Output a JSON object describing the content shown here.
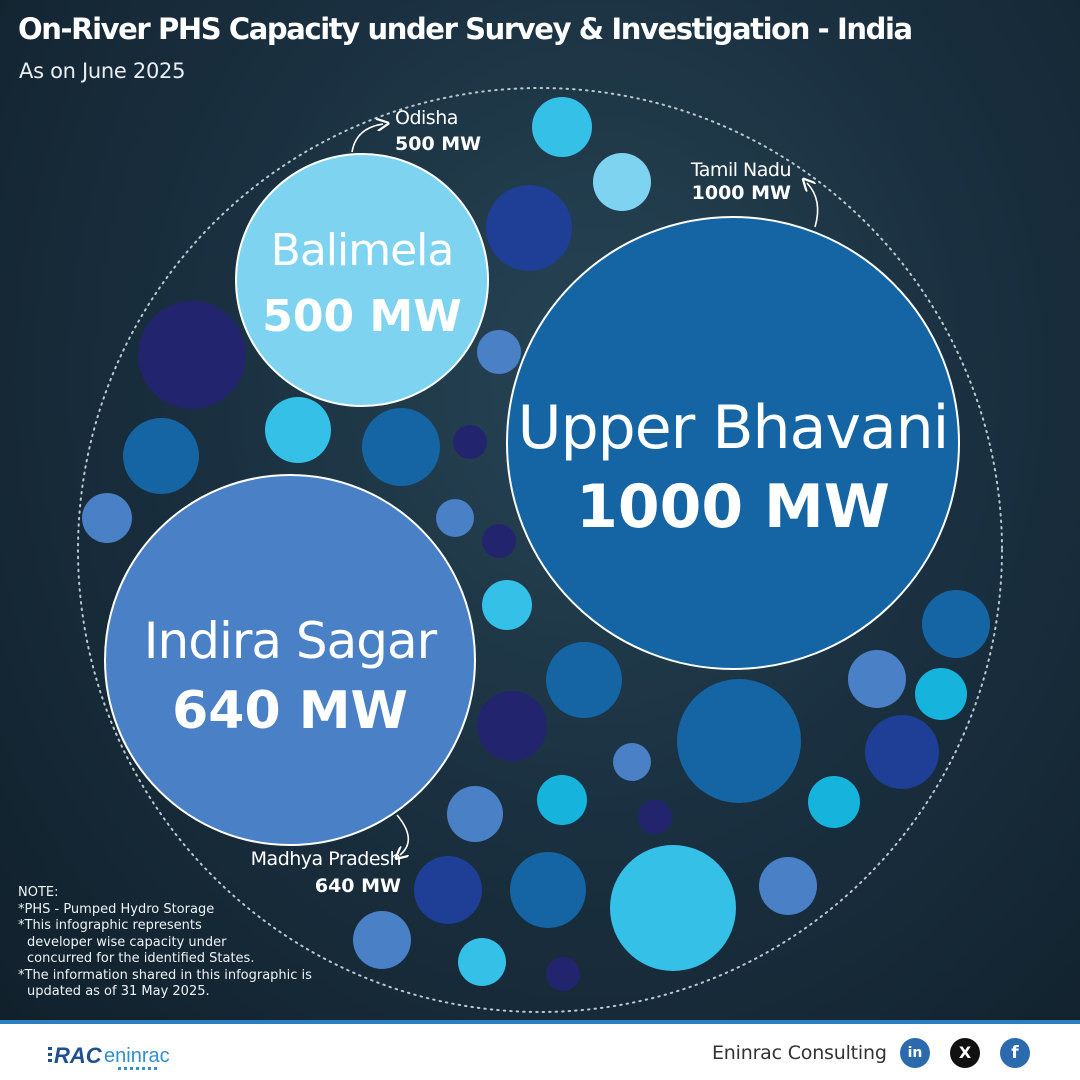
{
  "header": {
    "title": "On-River PHS Capacity under Survey & Investigation - India",
    "subtitle": "As on June 2025"
  },
  "chart_data": {
    "type": "bubble",
    "unit": "MW",
    "projects": [
      {
        "name": "Upper Bhavani",
        "state": "Tamil Nadu",
        "capacity_mw": 1000,
        "value_label": "1000 MW",
        "color": "#1565a5"
      },
      {
        "name": "Indira Sagar",
        "state": "Madhya Pradesh",
        "capacity_mw": 640,
        "value_label": "640 MW",
        "color": "#4a80c6"
      },
      {
        "name": "Balimela",
        "state": "Odisha",
        "capacity_mw": 500,
        "value_label": "500 MW",
        "color": "#7dd3f0"
      }
    ]
  },
  "notes": {
    "heading": "NOTE:",
    "lines": [
      "*PHS - Pumped Hydro Storage",
      "*This infographic represents",
      "developer wise capacity under",
      "concurred for the identified States.",
      "*The information shared in this infographic is",
      "updated as of 31 May 2025."
    ]
  },
  "footer": {
    "logo_text": "RAC",
    "logo_word": "eninrac",
    "company": "Eninrac Consulting",
    "social": [
      {
        "icon": "linkedin-icon",
        "glyph": "in"
      },
      {
        "icon": "x-icon",
        "glyph": "X"
      },
      {
        "icon": "facebook-icon",
        "glyph": "f"
      }
    ]
  },
  "colors": {
    "palette": [
      "#1565a5",
      "#4a80c6",
      "#7dd3f0",
      "#35c0e8",
      "#1f3e96",
      "#22256e",
      "#16b4dc"
    ]
  }
}
